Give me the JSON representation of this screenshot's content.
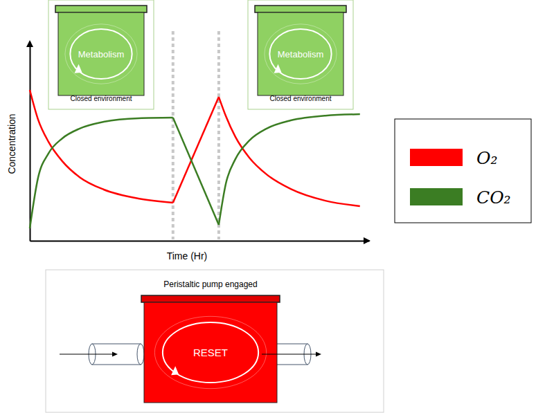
{
  "chart_data": {
    "type": "line",
    "x_label": "Time (Hr)",
    "y_label": "Concentration",
    "x": [
      0,
      0.24,
      0.55,
      0.96,
      1.47,
      2.18,
      3.2,
      4.22,
      5.57,
      5.78,
      6.06,
      6.47,
      6.98,
      7.69,
      8.71,
      9.73
    ],
    "series": [
      {
        "name": "O₂",
        "color": "#ff0000",
        "values": [
          7.57,
          6.11,
          4.97,
          3.99,
          3.19,
          2.57,
          2.12,
          1.91,
          7.22,
          6.25,
          5.21,
          4.17,
          3.33,
          2.6,
          2.01,
          1.74
        ]
      },
      {
        "name": "CO₂",
        "color": "#3b7d23",
        "values": [
          0.62,
          3.13,
          4.38,
          5.14,
          5.63,
          5.97,
          6.15,
          6.18,
          0.8,
          2.88,
          4.1,
          5.03,
          5.63,
          6.04,
          6.28,
          6.35
        ]
      }
    ],
    "xlim": [
      0,
      10
    ],
    "ylim": [
      0,
      10
    ],
    "tick_labels": false,
    "legend": "right",
    "phase_boundaries": [
      4.22,
      5.57
    ]
  },
  "panels": [
    {
      "label": "Metabolism",
      "caption": "Closed environment"
    },
    {
      "label": "Metabolism",
      "caption": "Closed environment"
    }
  ],
  "pump": {
    "title": "Peristaltic pump engaged",
    "label": "RESET"
  }
}
